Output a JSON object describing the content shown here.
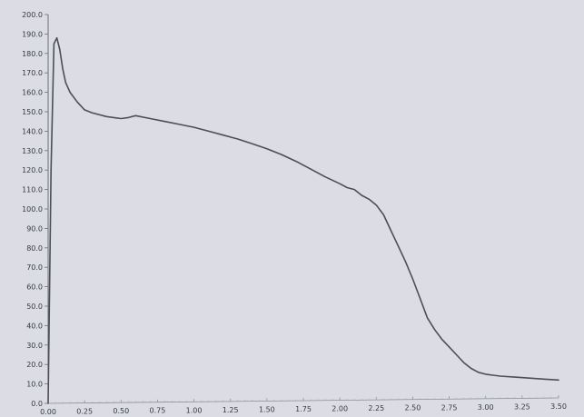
{
  "chart_data": {
    "type": "line",
    "title": "",
    "xlabel": "",
    "ylabel": "",
    "xlim": [
      0.0,
      3.5
    ],
    "ylim": [
      0.0,
      200.0
    ],
    "x_ticks": [
      "0.00",
      "0.25",
      "0.50",
      "0.75",
      "1.00",
      "1.25",
      "1.50",
      "1.75",
      "2.00",
      "2.25",
      "2.50",
      "2.75",
      "3.00",
      "3.25",
      "3.50"
    ],
    "y_ticks": [
      "0.0",
      "10.0",
      "20.0",
      "30.0",
      "40.0",
      "50.0",
      "60.0",
      "70.0",
      "80.0",
      "90.0",
      "100.0",
      "110.0",
      "120.0",
      "130.0",
      "140.0",
      "150.0",
      "160.0",
      "170.0",
      "180.0",
      "190.0",
      "200.0"
    ],
    "grid": false,
    "line_color": "#4a4f58",
    "series": [
      {
        "x": [
          0.0,
          0.02,
          0.04,
          0.06,
          0.08,
          0.1,
          0.12,
          0.15,
          0.2,
          0.25,
          0.3,
          0.4,
          0.5,
          0.55,
          0.6,
          0.7,
          0.8,
          0.9,
          1.0,
          1.1,
          1.2,
          1.3,
          1.4,
          1.5,
          1.6,
          1.7,
          1.8,
          1.9,
          2.0,
          2.05,
          2.1,
          2.15,
          2.2,
          2.25,
          2.3,
          2.35,
          2.4,
          2.45,
          2.5,
          2.55,
          2.6,
          2.65,
          2.7,
          2.75,
          2.8,
          2.85,
          2.9,
          2.95,
          3.0,
          3.05,
          3.1,
          3.2,
          3.3,
          3.4,
          3.5
        ],
        "y": [
          0.0,
          120.0,
          185.0,
          188.0,
          182.0,
          172.0,
          165.0,
          160.0,
          155.0,
          151.0,
          149.5,
          147.5,
          146.5,
          147.0,
          148.0,
          146.5,
          145.0,
          143.5,
          142.0,
          140.0,
          138.0,
          136.0,
          133.5,
          131.0,
          128.0,
          124.5,
          120.5,
          116.5,
          113.0,
          111.0,
          110.0,
          107.0,
          105.0,
          102.0,
          97.0,
          89.0,
          81.0,
          73.0,
          64.0,
          54.0,
          44.0,
          38.0,
          33.0,
          29.0,
          25.0,
          21.0,
          18.0,
          16.0,
          15.0,
          14.5,
          14.0,
          13.5,
          13.0,
          12.5,
          12.0
        ]
      }
    ]
  }
}
